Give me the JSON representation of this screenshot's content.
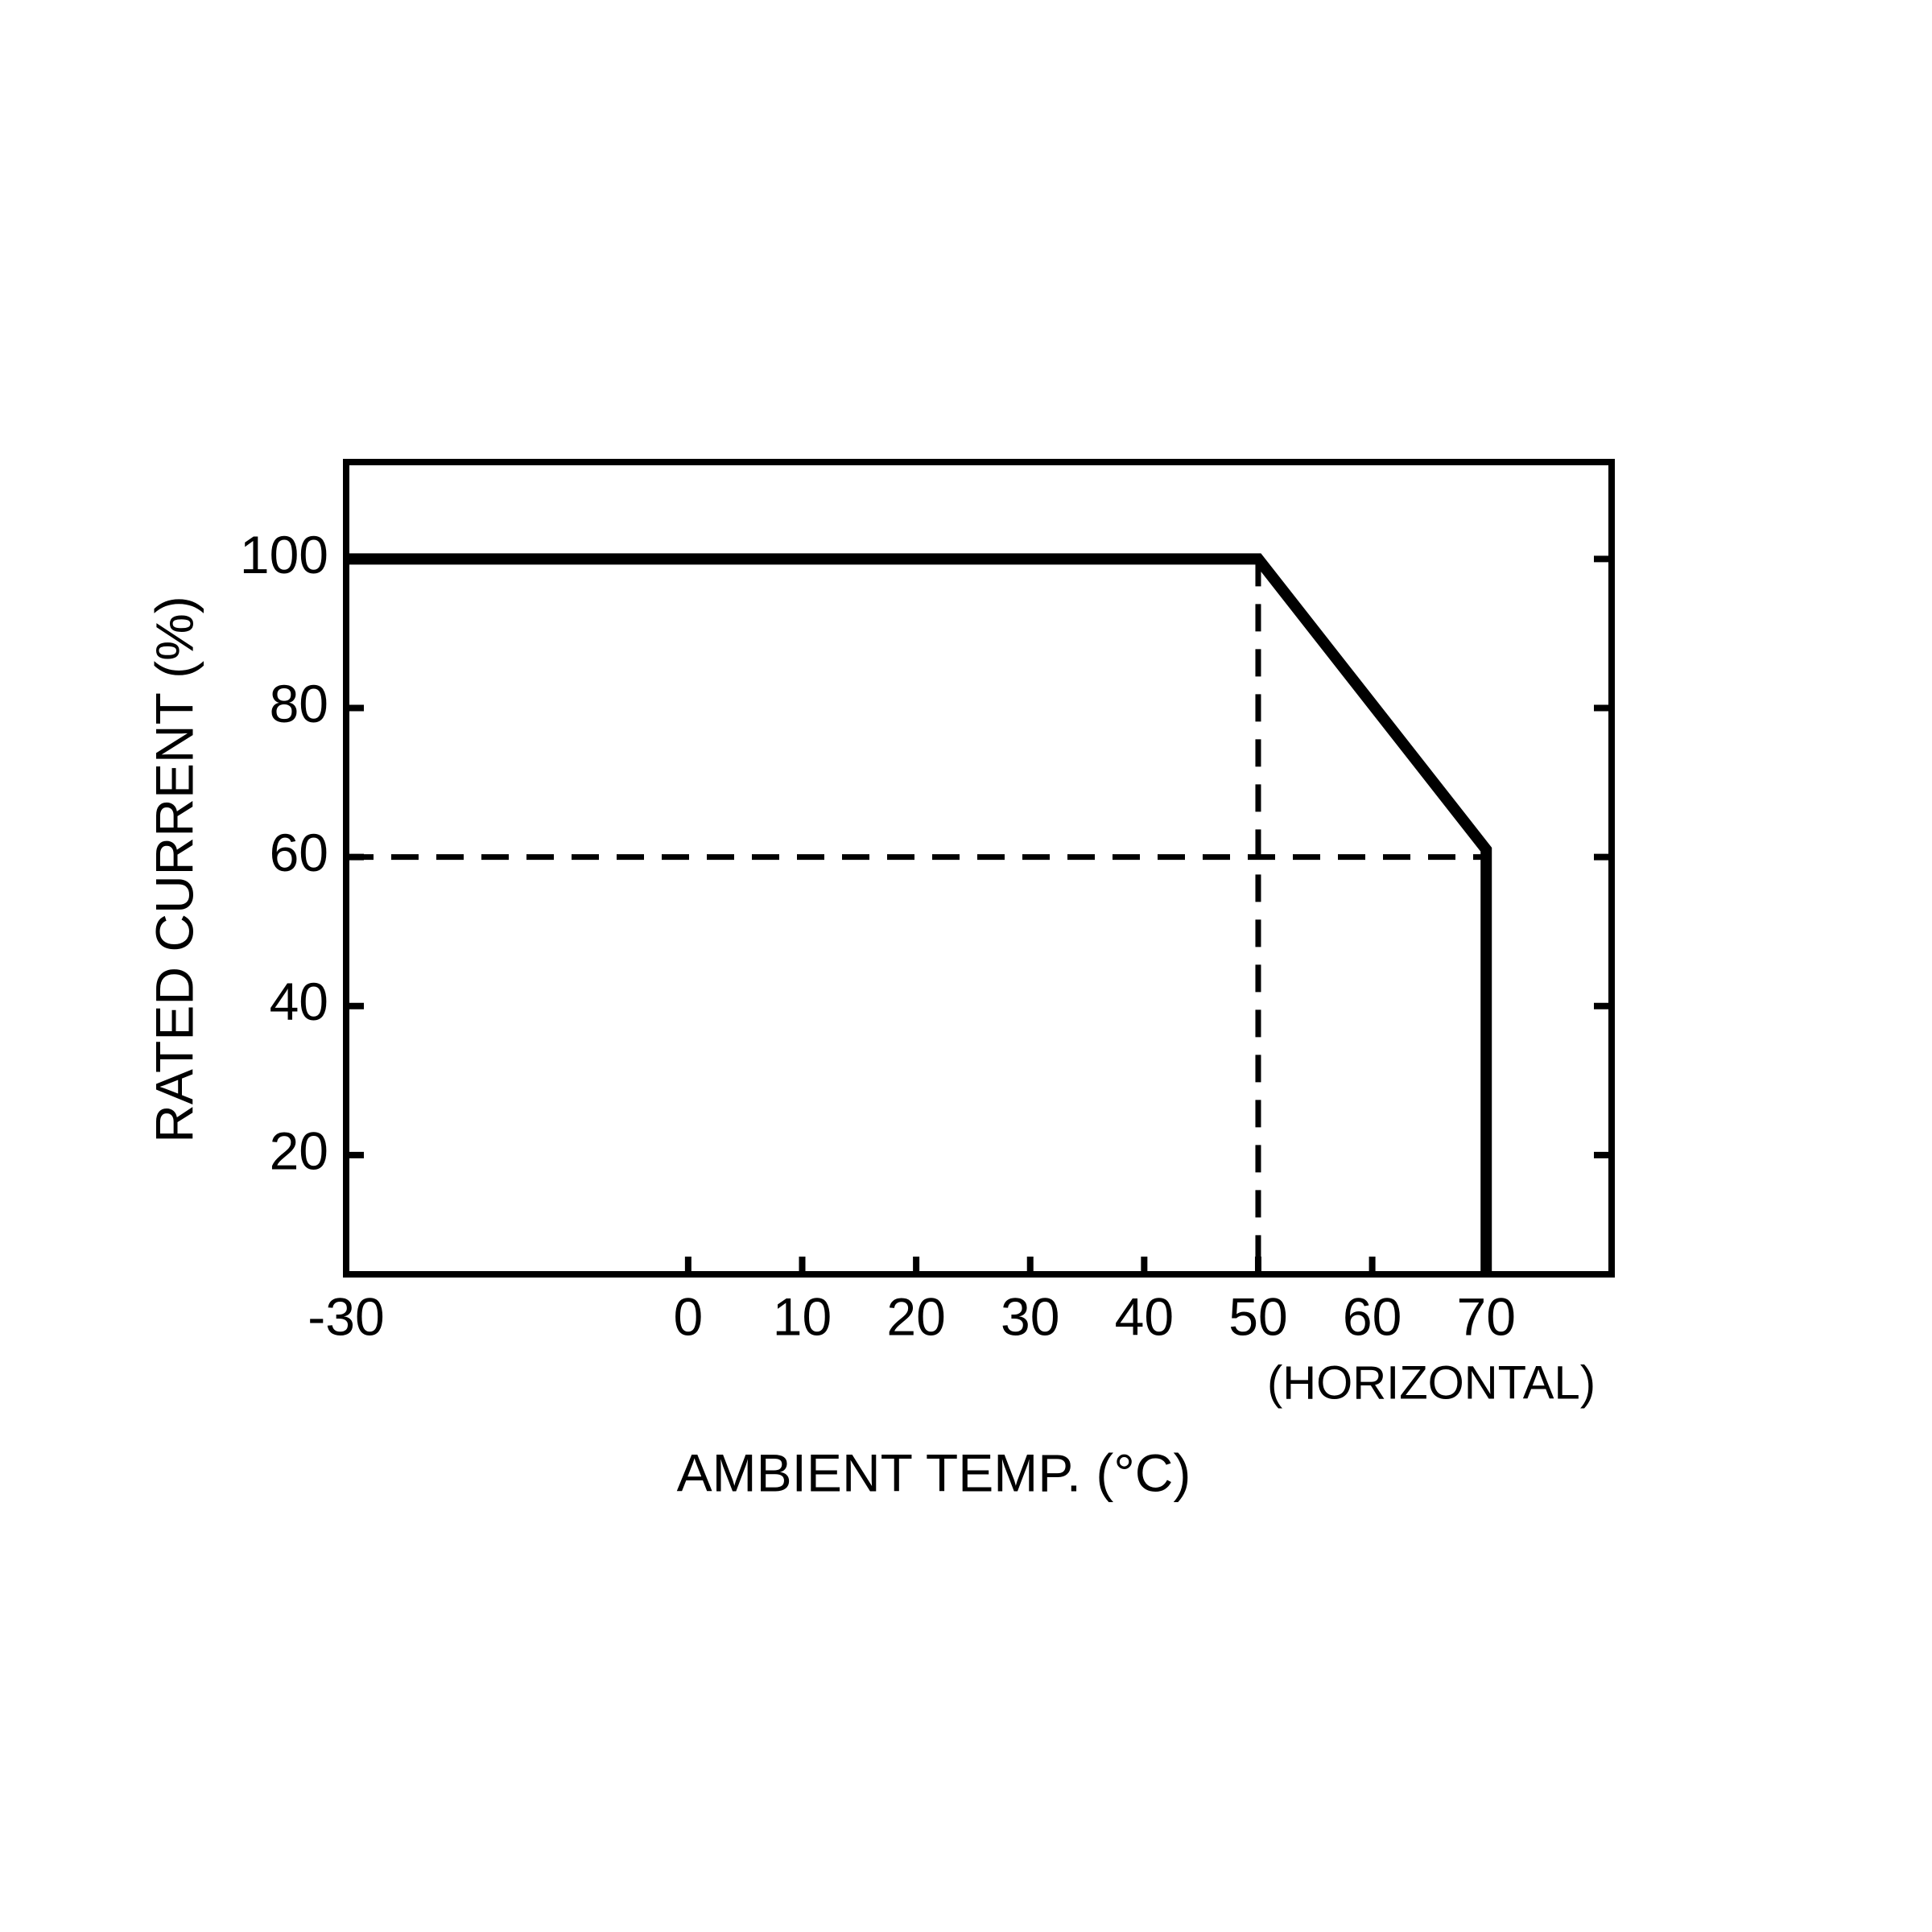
{
  "chart_data": {
    "type": "line",
    "x_label": "AMBIENT TEMP. (°C)",
    "y_label": "RATED CURRENT (%)",
    "annotation": "(HORIZONTAL)",
    "x": [
      -30,
      50,
      70,
      70
    ],
    "series": [
      {
        "color": "#000000",
        "values": [
          100,
          100,
          61,
          4
        ]
      }
    ],
    "reference_lines": [
      {
        "x": [
          -30,
          70
        ],
        "y": [
          60,
          60
        ]
      },
      {
        "x": [
          50,
          50
        ],
        "y": [
          100,
          4
        ]
      }
    ],
    "xlim": [
      -30,
      81
    ],
    "xticks": [
      -30,
      0,
      10,
      20,
      30,
      40,
      50,
      60,
      70
    ],
    "ylim": [
      4,
      113
    ],
    "yticks": [
      20,
      40,
      60,
      80,
      100
    ]
  }
}
